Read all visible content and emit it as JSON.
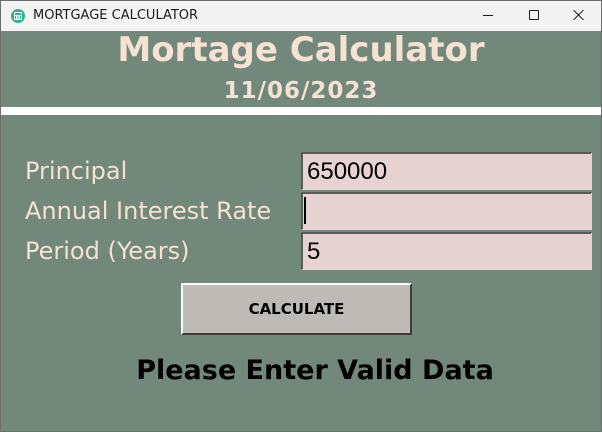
{
  "window": {
    "title": "MORTGAGE CALCULATOR",
    "icon": "calculator-icon"
  },
  "header": {
    "title": "Mortage Calculator",
    "date": "11/06/2023"
  },
  "form": {
    "principal": {
      "label": "Principal",
      "value": "650000"
    },
    "interest_rate": {
      "label": "Annual Interest Rate",
      "value": ""
    },
    "period": {
      "label": "Period (Years)",
      "value": "5"
    },
    "calculate_label": "CALCULATE"
  },
  "status": {
    "message": "Please Enter Valid Data"
  },
  "colors": {
    "background": "#72887a",
    "heading_text": "#f5e2d2",
    "field_background": "#e8d3d3",
    "button_background": "#bebab5"
  }
}
